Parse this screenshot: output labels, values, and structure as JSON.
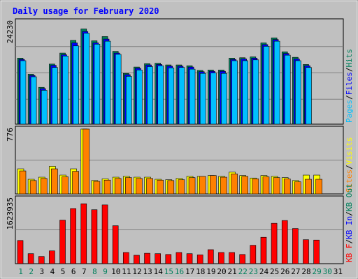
{
  "title": "Daily usage for February 2020",
  "colors": {
    "background": "#c0c0c0",
    "hits": "#00805c",
    "files": "#0000ff",
    "pages": "#00c0ff",
    "visits": "#ffff00",
    "sites": "#ff8000",
    "kbytes": "#ff0000",
    "kb_in": "#0000ff",
    "kb_out": "#00805c",
    "title": "#0000ff",
    "weekend_label": "#00805c",
    "weekday_label": "#000000"
  },
  "chart_data": {
    "type": "bar",
    "categories": [
      "1",
      "2",
      "3",
      "4",
      "5",
      "6",
      "7",
      "8",
      "9",
      "10",
      "11",
      "12",
      "13",
      "14",
      "15",
      "16",
      "17",
      "18",
      "19",
      "20",
      "21",
      "22",
      "23",
      "24",
      "25",
      "26",
      "27",
      "28",
      "29",
      "30",
      "31"
    ],
    "weekend_days": [
      "1",
      "2",
      "8",
      "9",
      "15",
      "16",
      "22",
      "23",
      "29",
      "30"
    ],
    "panels": [
      {
        "max_label": "24230",
        "ymax": 24230,
        "legend": [
          "Pages",
          "/",
          "Files",
          "/",
          "Hits"
        ],
        "legend_colors": [
          "#00c0ff",
          "#000000",
          "#0000ff",
          "#000000",
          "#00805c"
        ],
        "series": [
          {
            "name": "Hits",
            "values": [
              15600,
              11800,
              8700,
              14200,
              16800,
              19800,
              22500,
              19700,
              20700,
              17200,
              12000,
              13500,
              14300,
              14400,
              14000,
              14000,
              13800,
              12700,
              12800,
              12800,
              15600,
              15700,
              15900,
              19200,
              20400,
              17100,
              15800,
              14100,
              null,
              null,
              null
            ]
          },
          {
            "name": "Files",
            "values": [
              15300,
              11500,
              8400,
              13900,
              16400,
              19200,
              21900,
              19200,
              20100,
              16800,
              11700,
              13200,
              14000,
              14100,
              13700,
              13700,
              13500,
              12400,
              12500,
              12500,
              15300,
              15400,
              15600,
              18800,
              20000,
              16700,
              15400,
              13800,
              null,
              null,
              null
            ]
          },
          {
            "name": "Pages",
            "values": [
              15000,
              11200,
              8000,
              13400,
              16100,
              18500,
              21500,
              18900,
              19600,
              16500,
              11300,
              12800,
              13600,
              13800,
              13300,
              13400,
              13000,
              12000,
              12100,
              12000,
              15000,
              15000,
              15200,
              18400,
              19600,
              16300,
              15000,
              13400,
              null,
              null,
              null
            ]
          }
        ]
      },
      {
        "max_label": "776",
        "ymax": 776,
        "legend": [
          "Sites",
          "/",
          "Visits"
        ],
        "legend_colors": [
          "#ff8000",
          "#000000",
          "#ffff00"
        ],
        "series": [
          {
            "name": "Visits",
            "values": [
              300,
              175,
              200,
              330,
              225,
              300,
              776,
              160,
              180,
              200,
              210,
              200,
              200,
              175,
              170,
              185,
              210,
              210,
              220,
              210,
              260,
              220,
              190,
              220,
              210,
              195,
              160,
              225,
              225,
              null,
              null
            ]
          },
          {
            "name": "Sites",
            "values": [
              275,
              160,
              185,
              300,
              205,
              270,
              776,
              150,
              165,
              185,
              195,
              185,
              185,
              165,
              160,
              170,
              195,
              210,
              220,
              200,
              240,
              210,
              180,
              205,
              195,
              180,
              145,
              175,
              175,
              null,
              null
            ]
          }
        ]
      },
      {
        "max_label": "1623935",
        "ymax": 1623935,
        "legend": [
          "KB F",
          "/",
          "KB In",
          "/",
          "KB Out"
        ],
        "legend_colors": [
          "#ff0000",
          "#000000",
          "#0000ff",
          "#000000",
          "#00805c"
        ],
        "series": [
          {
            "name": "KB F",
            "values": [
              580000,
              250000,
              180000,
              320000,
              1090000,
              1380000,
              1500000,
              1350000,
              1470000,
              950000,
              280000,
              210000,
              260000,
              250000,
              230000,
              280000,
              250000,
              220000,
              350000,
              280000,
              280000,
              230000,
              460000,
              660000,
              1010000,
              1080000,
              880000,
              600000,
              590000,
              null,
              null
            ]
          }
        ]
      }
    ]
  }
}
